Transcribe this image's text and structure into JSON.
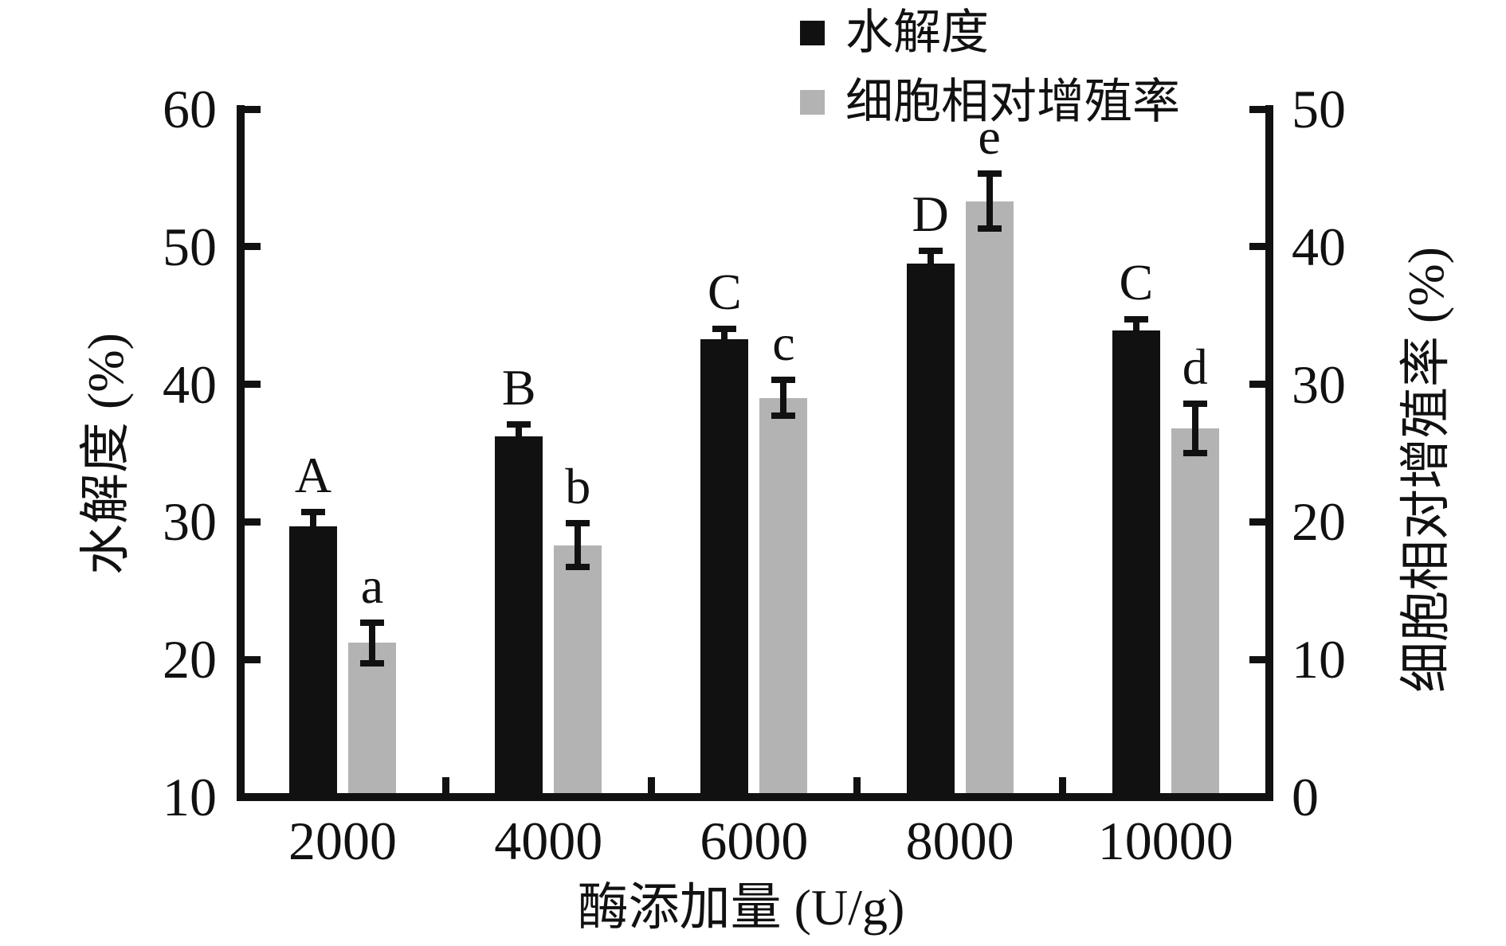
{
  "chart_data": {
    "type": "bar",
    "title": "",
    "categories": [
      "2000",
      "4000",
      "6000",
      "8000",
      "10000"
    ],
    "xlabel": "酶添加量 (U/g)",
    "grid": false,
    "legend_position": "top-center",
    "left_axis": {
      "label": "水解度 (%)",
      "min": 10,
      "max": 60,
      "ticks": [
        10,
        20,
        30,
        40,
        50,
        60
      ]
    },
    "right_axis": {
      "label": "细胞相对增殖率 (%)",
      "min": 0,
      "max": 50,
      "ticks": [
        0,
        10,
        20,
        30,
        40,
        50
      ]
    },
    "series": [
      {
        "name": "水解度",
        "axis": "left",
        "color": "#111111",
        "values": [
          29.7,
          36.2,
          43.3,
          48.8,
          43.9
        ],
        "errors": [
          1.0,
          0.9,
          0.7,
          0.9,
          0.8
        ],
        "sig_labels": [
          "A",
          "B",
          "C",
          "D",
          "C"
        ]
      },
      {
        "name": "细胞相对增殖率",
        "axis": "right",
        "color": "#b3b3b3",
        "values": [
          11.2,
          18.3,
          29.0,
          43.3,
          26.8
        ],
        "errors": [
          1.5,
          1.6,
          1.3,
          2.0,
          1.8
        ],
        "sig_labels": [
          "a",
          "b",
          "c",
          "e",
          "d"
        ]
      }
    ]
  }
}
